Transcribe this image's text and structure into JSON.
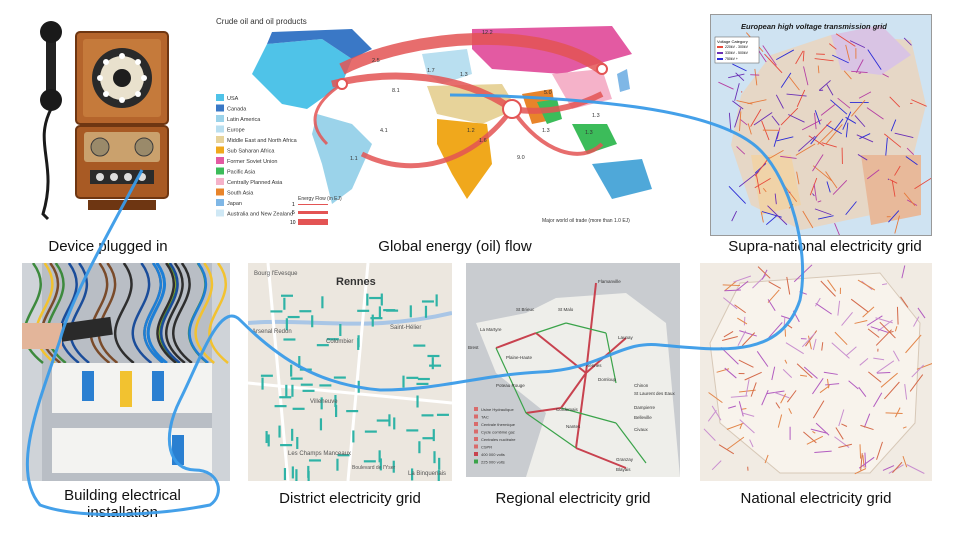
{
  "labels": {
    "device": "Device plugged in",
    "global": "Global energy (oil) flow",
    "supra": "Supra-national electricity grid",
    "building_line1": "Building electrical",
    "building_line2": "installation",
    "district": "District electricity grid",
    "regional": "Regional electricity grid",
    "national": "National electricity grid"
  },
  "oil_map": {
    "title": "Crude oil and oil products",
    "legend": [
      "USA",
      "Canada",
      "Latin America",
      "Europe",
      "Middle East and North Africa",
      "Sub Saharan Africa",
      "Former Soviet Union",
      "Pacific Asia",
      "Centrally Planned Asia",
      "South Asia",
      "Japan",
      "Australia and New Zealand"
    ],
    "legend_colors": [
      "#4fc3e8",
      "#3a78c6",
      "#9bd3ea",
      "#b9dff0",
      "#e7d39a",
      "#f0a81c",
      "#e35aa2",
      "#3cbc5a",
      "#f5b2c9",
      "#e8842a",
      "#7fb7e6",
      "#cfe8f5"
    ],
    "energy_flow_title": "Energy Flow (in EJ)",
    "energy_flow_scale": [
      "1",
      "5",
      "10"
    ],
    "footnote": "Major world oil trade (more than 1.0 EJ)",
    "flow_values": [
      "12.2",
      "2.5",
      "1.7",
      "1.3",
      "5.0",
      "8.1",
      "4.1",
      "1.2",
      "1.6",
      "9.0",
      "1.3",
      "1.1",
      "1.3",
      "1.3"
    ]
  },
  "grid_map": {
    "title": "European high voltage transmission grid",
    "legend_title": "Voltage Category",
    "legend_items": [
      "220kV - 300kV",
      "330kV - 500kV",
      "750kV +"
    ]
  },
  "district_map": {
    "city": "Rennes",
    "places": [
      "Bourg l'Evesque",
      "Arsenal Redon",
      "Colombier",
      "Saint-Hélier",
      "Villeneuve",
      "Les Champs Manceaux",
      "Boulevard de l'Yser",
      "La Binquenais"
    ]
  },
  "regional_map": {
    "places": [
      "Flamanville",
      "La Martyre",
      "St Brieuc",
      "St Malo",
      "Launay",
      "Brest",
      "Plaine-Haute",
      "Rennes",
      "Domloup",
      "Poteau Rouge",
      "Cordemais",
      "Nantes",
      "Chinon",
      "St Laurent des Eaux",
      "Dampierre",
      "Belleville",
      "Civaux",
      "Granzay",
      "Blayais"
    ],
    "legend": [
      "Usine Hydraulique",
      "TAC",
      "Centrale thermique",
      "Cycle combiné gaz",
      "Centrales nucléaire",
      "CSPR",
      "400 000 volts",
      "225 000 volts"
    ]
  }
}
